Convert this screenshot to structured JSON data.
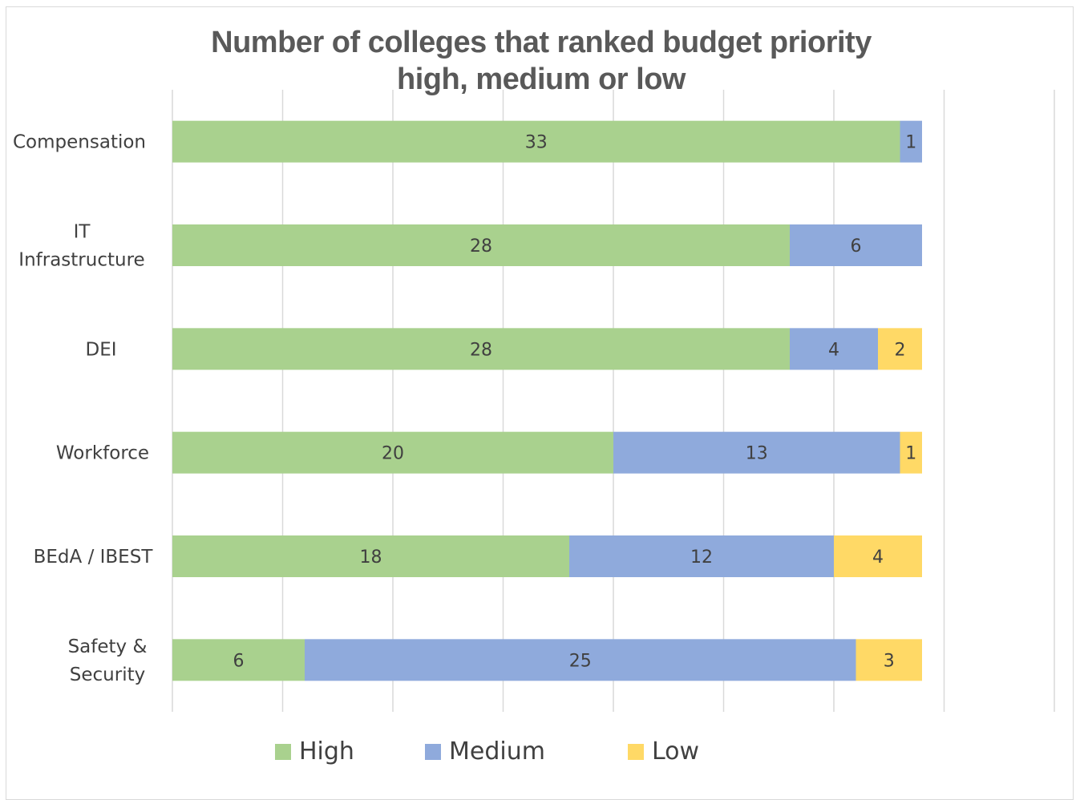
{
  "chart_data": {
    "type": "bar",
    "orientation": "horizontal",
    "stacked": true,
    "title_lines": [
      "Number of colleges that ranked budget priority",
      "high, medium or low"
    ],
    "categories": [
      [
        "Compensation"
      ],
      [
        "IT",
        "Infrastructure"
      ],
      [
        "DEI"
      ],
      [
        "Workforce"
      ],
      [
        "BEdA / IBEST"
      ],
      [
        "Safety &",
        "Security"
      ]
    ],
    "series": [
      {
        "name": "High",
        "color": "#a9d18e",
        "values": [
          33,
          28,
          28,
          20,
          18,
          6
        ]
      },
      {
        "name": "Medium",
        "color": "#8faadc",
        "values": [
          1,
          6,
          4,
          13,
          12,
          25
        ]
      },
      {
        "name": "Low",
        "color": "#ffd966",
        "values": [
          0,
          0,
          2,
          1,
          4,
          3
        ]
      }
    ],
    "xlim": [
      0,
      40
    ],
    "grid": true,
    "legend_position": "bottom"
  }
}
